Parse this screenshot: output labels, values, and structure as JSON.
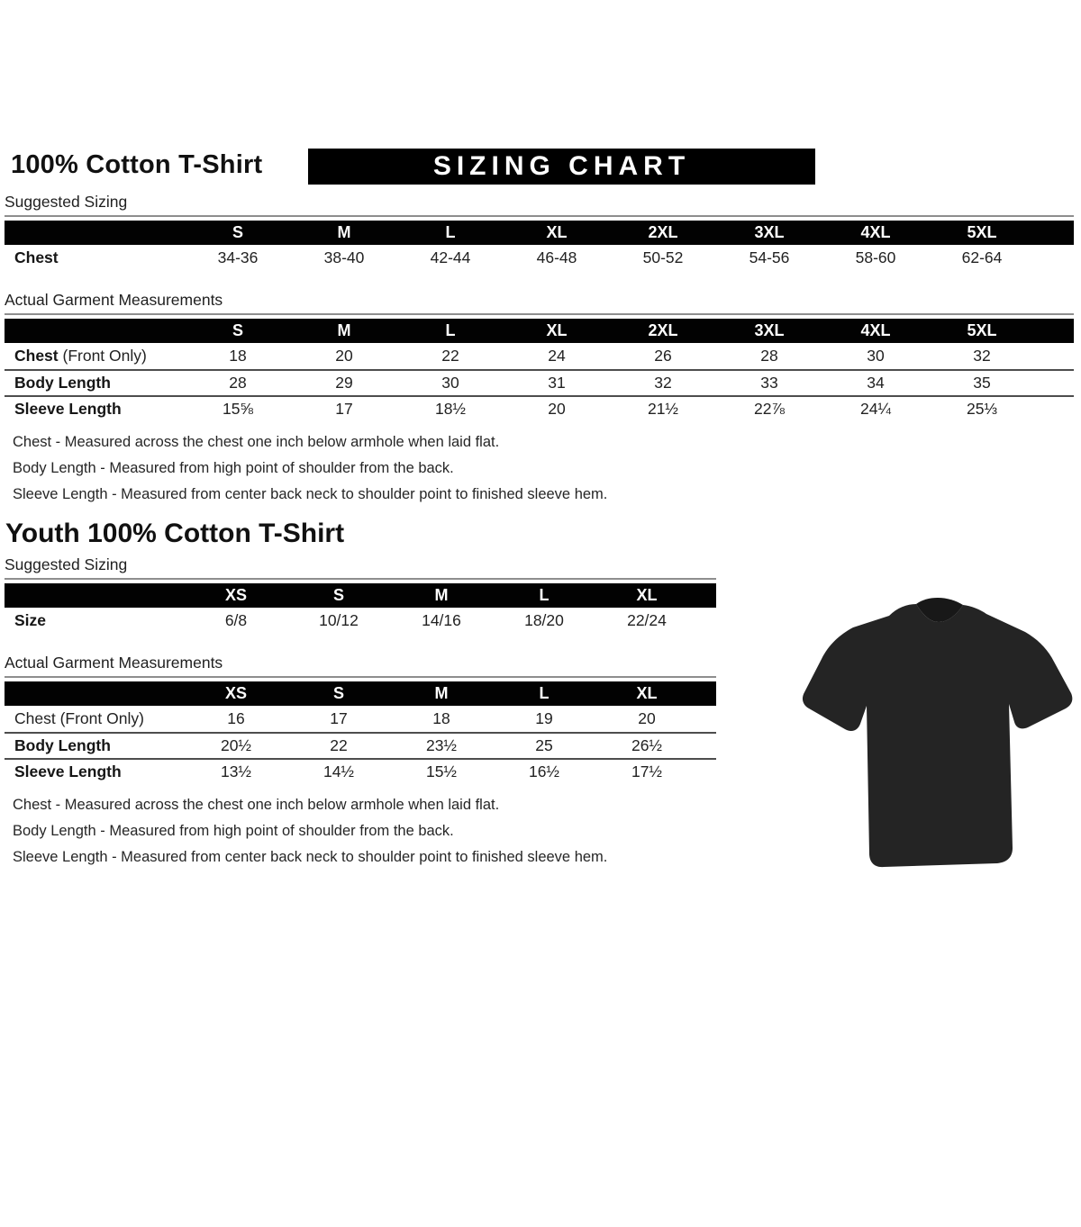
{
  "adult": {
    "title": "100% Cotton T-Shirt",
    "banner": "SIZING CHART",
    "suggested_label": "Suggested Sizing",
    "actual_label": "Actual Garment Measurements",
    "suggested_table": {
      "columns": [
        "S",
        "M",
        "L",
        "XL",
        "2XL",
        "3XL",
        "4XL",
        "5XL"
      ],
      "rows": [
        {
          "label": "Chest",
          "suffix": "",
          "bold": true,
          "values": [
            "34-36",
            "38-40",
            "42-44",
            "46-48",
            "50-52",
            "54-56",
            "58-60",
            "62-64"
          ]
        }
      ]
    },
    "actual_table": {
      "columns": [
        "S",
        "M",
        "L",
        "XL",
        "2XL",
        "3XL",
        "4XL",
        "5XL"
      ],
      "rows": [
        {
          "label": "Chest",
          "suffix": " (Front Only)",
          "bold": true,
          "values": [
            "18",
            "20",
            "22",
            "24",
            "26",
            "28",
            "30",
            "32"
          ]
        },
        {
          "label": "Body Length",
          "suffix": "",
          "bold": true,
          "values": [
            "28",
            "29",
            "30",
            "31",
            "32",
            "33",
            "34",
            "35"
          ]
        },
        {
          "label": "Sleeve Length",
          "suffix": "",
          "bold": true,
          "values": [
            "15⅝",
            "17",
            "18½",
            "20",
            "21½",
            "22⅞",
            "24¼",
            "25⅓"
          ]
        }
      ]
    },
    "notes": [
      "Chest - Measured across the chest one inch below armhole when laid flat.",
      "Body Length - Measured from high point of shoulder from the back.",
      "Sleeve Length - Measured from center back neck to shoulder point to finished sleeve hem."
    ]
  },
  "youth": {
    "title": "Youth 100% Cotton T-Shirt",
    "suggested_label": "Suggested Sizing",
    "actual_label": "Actual Garment Measurements",
    "suggested_table": {
      "columns": [
        "XS",
        "S",
        "M",
        "L",
        "XL"
      ],
      "rows": [
        {
          "label": "Size",
          "suffix": "",
          "bold": true,
          "values": [
            "6/8",
            "10/12",
            "14/16",
            "18/20",
            "22/24"
          ]
        }
      ]
    },
    "actual_table": {
      "columns": [
        "XS",
        "S",
        "M",
        "L",
        "XL"
      ],
      "rows": [
        {
          "label": "Chest (Front Only)",
          "suffix": "",
          "bold": false,
          "values": [
            "16",
            "17",
            "18",
            "19",
            "20"
          ]
        },
        {
          "label": "Body Length",
          "suffix": "",
          "bold": true,
          "values": [
            "20½",
            "22",
            "23½",
            "25",
            "26½"
          ]
        },
        {
          "label": "Sleeve Length",
          "suffix": "",
          "bold": true,
          "values": [
            "13½",
            "14½",
            "15½",
            "16½",
            "17½"
          ]
        }
      ]
    },
    "notes": [
      "Chest - Measured across the chest one inch below armhole when laid flat.",
      "Body Length - Measured from high point of shoulder from the back.",
      "Sleeve Length - Measured from center back neck to shoulder point to finished sleeve hem."
    ]
  },
  "tshirt": {
    "description": "black cotton t-shirt product photo",
    "color": "#242424"
  }
}
